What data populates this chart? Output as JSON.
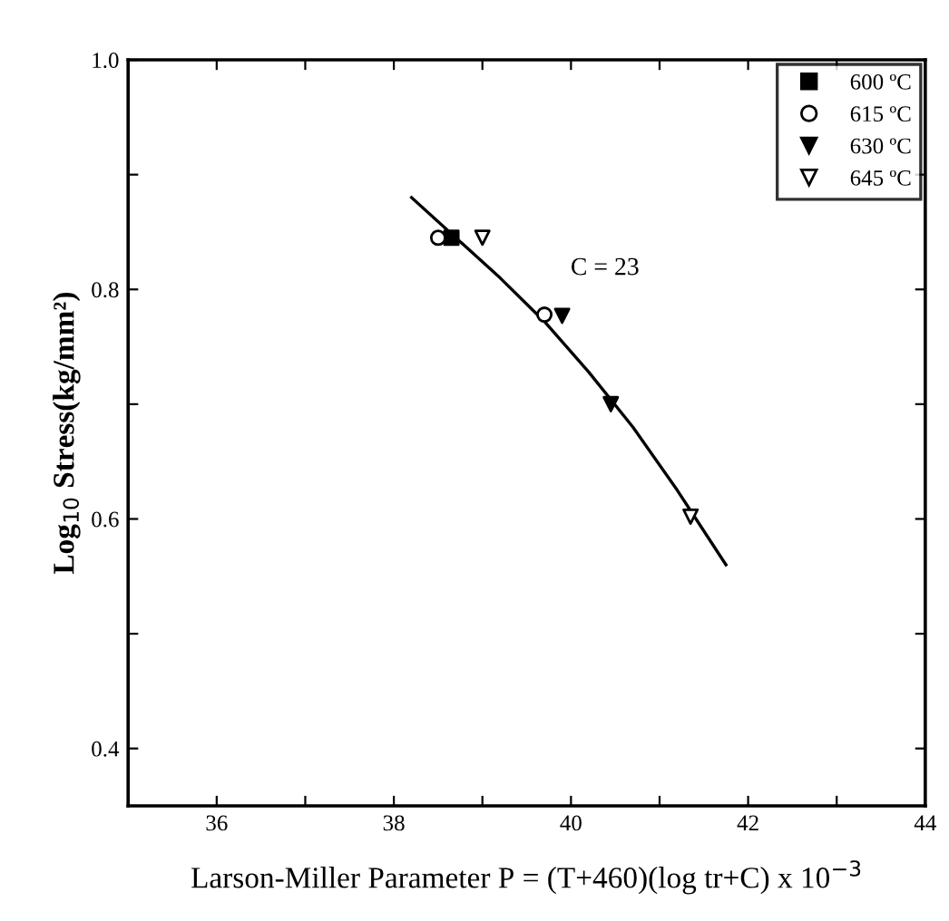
{
  "chart_data": {
    "type": "scatter",
    "xlabel": "Larson-Miller Parameter P = (T+460)(log tr+C) x 10$^{−3}$",
    "ylabel": "Log$_{10}$ Stress(kg/mm²)",
    "xlim": [
      35,
      44
    ],
    "ylim": [
      0.35,
      1.0
    ],
    "xticks": [
      36,
      {
        "value": 37,
        "label": null
      },
      38,
      {
        "value": 39,
        "label": null
      },
      40,
      {
        "value": 41,
        "label": null
      },
      42,
      {
        "value": 43,
        "label": null
      },
      44
    ],
    "yticks": [
      0.4,
      {
        "value": 0.5,
        "label": null
      },
      0.6,
      {
        "value": 0.7,
        "label": null
      },
      0.8,
      {
        "value": 0.9,
        "label": null
      },
      {
        "value": 1.0,
        "label": "1.0"
      }
    ],
    "grid": false,
    "legend": "top right",
    "annotations": [
      "C = 23"
    ],
    "series": [
      {
        "name": "600 ºC",
        "color": "#000000",
        "marker": "square",
        "x": [
          38.65
        ],
        "values": [
          0.845
        ]
      },
      {
        "name": "615 ºC",
        "color": "#ffffff",
        "marker": "circle",
        "x": [
          38.5,
          39.7
        ],
        "values": [
          0.845,
          0.778
        ]
      },
      {
        "name": "630 ºC",
        "color": "#000000",
        "marker": "triangle",
        "x": [
          39.9,
          40.45
        ],
        "values": [
          0.777,
          0.7
        ]
      },
      {
        "name": "645 ºC",
        "color": "#ffffff",
        "marker": "triangle",
        "x": [
          39.0,
          41.35
        ],
        "values": [
          0.845,
          0.602
        ]
      },
      {
        "type": "line",
        "color": "#000000",
        "marker": "none",
        "line_style": "solid",
        "x": [
          38.2,
          38.7,
          39.2,
          39.7,
          40.2,
          40.7,
          41.2,
          41.75
        ],
        "values": [
          0.88,
          0.845,
          0.81,
          0.772,
          0.728,
          0.68,
          0.625,
          0.56
        ]
      }
    ]
  }
}
